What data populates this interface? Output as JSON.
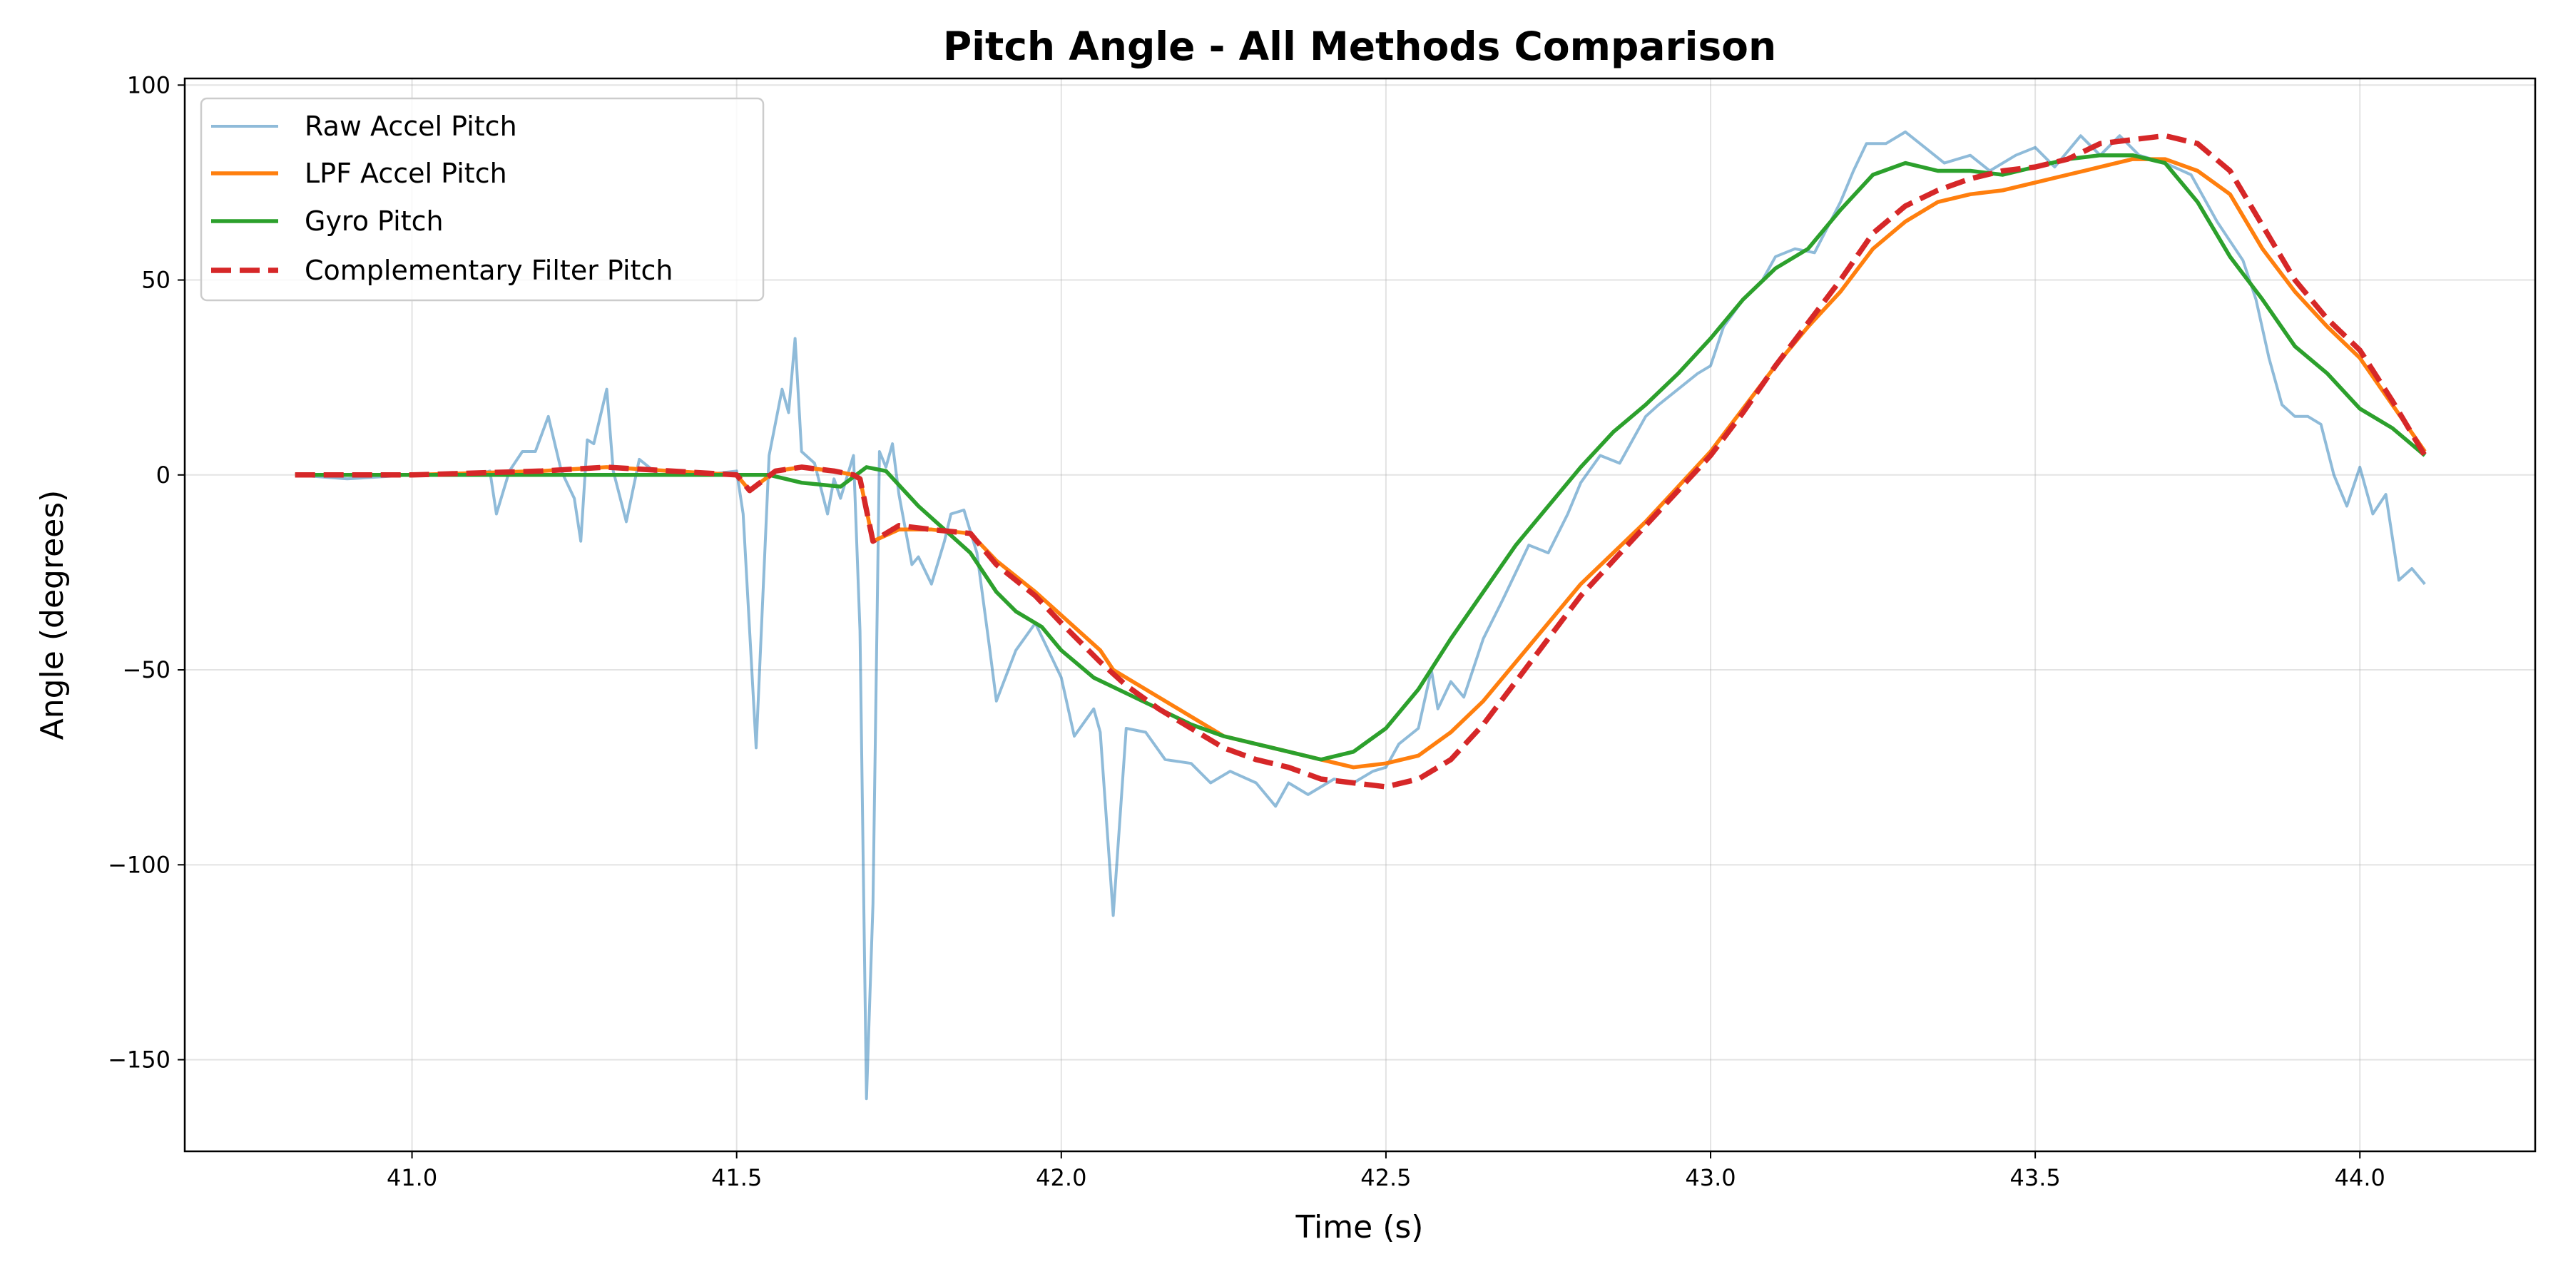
{
  "chart_data": {
    "type": "line",
    "title": "Pitch Angle - All Methods Comparison",
    "xlabel": "Time (s)",
    "ylabel": "Angle (degrees)",
    "xlim": [
      40.65,
      44.27
    ],
    "ylim": [
      -173.5,
      101.7
    ],
    "xticks": [
      41.0,
      41.5,
      42.0,
      42.5,
      43.0,
      43.5,
      44.0
    ],
    "xtick_labels": [
      "41.0",
      "41.5",
      "42.0",
      "42.5",
      "43.0",
      "43.5",
      "44.0"
    ],
    "yticks": [
      -150,
      -100,
      -50,
      0,
      50,
      100
    ],
    "ytick_labels": [
      "−150",
      "−100",
      "−50",
      "0",
      "50",
      "100"
    ],
    "grid": true,
    "legend_position": "top-left",
    "series": [
      {
        "name": "Raw Accel Pitch",
        "color": "#1f77b4",
        "opacity": 0.5,
        "style": "solid",
        "x": [
          40.82,
          40.9,
          41.0,
          41.1,
          41.12,
          41.13,
          41.15,
          41.17,
          41.19,
          41.21,
          41.23,
          41.25,
          41.26,
          41.27,
          41.28,
          41.3,
          41.31,
          41.33,
          41.35,
          41.38,
          41.45,
          41.5,
          41.51,
          41.53,
          41.55,
          41.57,
          41.58,
          41.59,
          41.6,
          41.62,
          41.64,
          41.65,
          41.66,
          41.68,
          41.69,
          41.7,
          41.71,
          41.72,
          41.73,
          41.74,
          41.75,
          41.77,
          41.78,
          41.8,
          41.82,
          41.83,
          41.85,
          41.87,
          41.89,
          41.9,
          41.93,
          41.96,
          41.98,
          42.0,
          42.02,
          42.05,
          42.06,
          42.08,
          42.1,
          42.13,
          42.16,
          42.2,
          42.23,
          42.26,
          42.3,
          42.33,
          42.35,
          42.38,
          42.42,
          42.45,
          42.48,
          42.5,
          42.52,
          42.55,
          42.57,
          42.58,
          42.6,
          42.62,
          42.65,
          42.68,
          42.7,
          42.72,
          42.75,
          42.78,
          42.8,
          42.83,
          42.86,
          42.9,
          42.92,
          42.95,
          42.98,
          43.0,
          43.02,
          43.05,
          43.08,
          43.1,
          43.13,
          43.16,
          43.2,
          43.22,
          43.24,
          43.27,
          43.3,
          43.33,
          43.36,
          43.4,
          43.43,
          43.47,
          43.5,
          43.53,
          43.57,
          43.6,
          43.63,
          43.66,
          43.7,
          43.74,
          43.78,
          43.82,
          43.84,
          43.86,
          43.88,
          43.9,
          43.92,
          43.94,
          43.96,
          43.98,
          44.0,
          44.02,
          44.04,
          44.06,
          44.08,
          44.1
        ],
        "y": [
          0,
          -1,
          0,
          0,
          1,
          -10,
          1,
          6,
          6,
          15,
          1,
          -6,
          -17,
          9,
          8,
          22,
          1,
          -12,
          4,
          0,
          0,
          1,
          -10,
          -70,
          5,
          22,
          16,
          35,
          6,
          3,
          -10,
          -1,
          -6,
          5,
          -40,
          -160,
          -110,
          6,
          2,
          8,
          -5,
          -23,
          -21,
          -28,
          -17,
          -10,
          -9,
          -20,
          -45,
          -58,
          -45,
          -38,
          -45,
          -52,
          -67,
          -60,
          -66,
          -113,
          -65,
          -66,
          -73,
          -74,
          -79,
          -76,
          -79,
          -85,
          -79,
          -82,
          -78,
          -79,
          -76,
          -75,
          -69,
          -65,
          -50,
          -60,
          -53,
          -57,
          -42,
          -32,
          -25,
          -18,
          -20,
          -10,
          -2,
          5,
          3,
          15,
          18,
          22,
          26,
          28,
          38,
          45,
          50,
          56,
          58,
          57,
          70,
          78,
          85,
          85,
          88,
          84,
          80,
          82,
          78,
          82,
          84,
          79,
          87,
          82,
          87,
          82,
          80,
          77,
          65,
          55,
          45,
          30,
          18,
          15,
          15,
          13,
          0,
          -8,
          2,
          -10,
          -5,
          -27,
          -24,
          -28
        ]
      },
      {
        "name": "LPF Accel Pitch",
        "color": "#ff7f0e",
        "style": "solid",
        "x": [
          40.82,
          41.0,
          41.2,
          41.3,
          41.5,
          41.52,
          41.56,
          41.6,
          41.65,
          41.68,
          41.69,
          41.71,
          41.75,
          41.8,
          41.86,
          41.9,
          41.96,
          42.0,
          42.06,
          42.08,
          42.15,
          42.2,
          42.25,
          42.3,
          42.35,
          42.4,
          42.45,
          42.5,
          42.55,
          42.6,
          42.65,
          42.7,
          42.75,
          42.8,
          42.85,
          42.9,
          42.95,
          43.0,
          43.05,
          43.1,
          43.15,
          43.2,
          43.25,
          43.3,
          43.35,
          43.4,
          43.45,
          43.5,
          43.55,
          43.6,
          43.65,
          43.7,
          43.75,
          43.8,
          43.85,
          43.9,
          43.95,
          44.0,
          44.05,
          44.1
        ],
        "y": [
          0,
          0,
          1,
          2,
          0,
          -4,
          1,
          2,
          1,
          0,
          -1,
          -17,
          -14,
          -14,
          -15,
          -22,
          -30,
          -36,
          -45,
          -50,
          -57,
          -62,
          -67,
          -69,
          -71,
          -73,
          -75,
          -74,
          -72,
          -66,
          -58,
          -48,
          -38,
          -28,
          -20,
          -12,
          -3,
          6,
          17,
          28,
          38,
          47,
          58,
          65,
          70,
          72,
          73,
          75,
          77,
          79,
          81,
          81,
          78,
          72,
          58,
          47,
          38,
          30,
          18,
          6
        ]
      },
      {
        "name": "Gyro Pitch",
        "color": "#2ca02c",
        "style": "solid",
        "x": [
          40.82,
          41.0,
          41.3,
          41.55,
          41.6,
          41.66,
          41.7,
          41.73,
          41.78,
          41.82,
          41.86,
          41.9,
          41.93,
          41.97,
          42.0,
          42.05,
          42.1,
          42.15,
          42.2,
          42.25,
          42.3,
          42.35,
          42.4,
          42.45,
          42.5,
          42.55,
          42.6,
          42.65,
          42.7,
          42.75,
          42.8,
          42.85,
          42.9,
          42.95,
          43.0,
          43.05,
          43.1,
          43.15,
          43.2,
          43.25,
          43.3,
          43.35,
          43.4,
          43.45,
          43.5,
          43.55,
          43.6,
          43.65,
          43.7,
          43.75,
          43.8,
          43.85,
          43.9,
          43.95,
          44.0,
          44.05,
          44.1
        ],
        "y": [
          0,
          0,
          0,
          0,
          -2,
          -3,
          2,
          1,
          -8,
          -14,
          -20,
          -30,
          -35,
          -39,
          -45,
          -52,
          -56,
          -60,
          -64,
          -67,
          -69,
          -71,
          -73,
          -71,
          -65,
          -55,
          -42,
          -30,
          -18,
          -8,
          2,
          11,
          18,
          26,
          35,
          45,
          53,
          58,
          68,
          77,
          80,
          78,
          78,
          77,
          79,
          81,
          82,
          82,
          80,
          70,
          56,
          45,
          33,
          26,
          17,
          12,
          5
        ]
      },
      {
        "name": "Complementary Filter Pitch",
        "color": "#d62728",
        "style": "dashed",
        "x": [
          40.82,
          41.0,
          41.2,
          41.3,
          41.5,
          41.52,
          41.56,
          41.6,
          41.65,
          41.68,
          41.69,
          41.71,
          41.75,
          41.8,
          41.86,
          41.9,
          41.96,
          42.0,
          42.06,
          42.1,
          42.15,
          42.2,
          42.25,
          42.3,
          42.35,
          42.4,
          42.45,
          42.5,
          42.55,
          42.6,
          42.65,
          42.7,
          42.75,
          42.8,
          42.85,
          42.9,
          42.95,
          43.0,
          43.05,
          43.1,
          43.15,
          43.2,
          43.25,
          43.3,
          43.35,
          43.4,
          43.45,
          43.5,
          43.55,
          43.6,
          43.65,
          43.7,
          43.75,
          43.8,
          43.85,
          43.9,
          43.95,
          44.0,
          44.05,
          44.1
        ],
        "y": [
          0,
          0,
          1,
          2,
          0,
          -4,
          1,
          2,
          1,
          0,
          -1,
          -17,
          -13,
          -14,
          -15,
          -23,
          -31,
          -38,
          -48,
          -54,
          -60,
          -65,
          -70,
          -73,
          -75,
          -78,
          -79,
          -80,
          -78,
          -73,
          -64,
          -53,
          -42,
          -31,
          -22,
          -13,
          -4,
          5,
          16,
          28,
          39,
          50,
          62,
          69,
          73,
          76,
          78,
          79,
          81,
          85,
          86,
          87,
          85,
          78,
          64,
          50,
          40,
          32,
          19,
          5
        ]
      }
    ]
  }
}
